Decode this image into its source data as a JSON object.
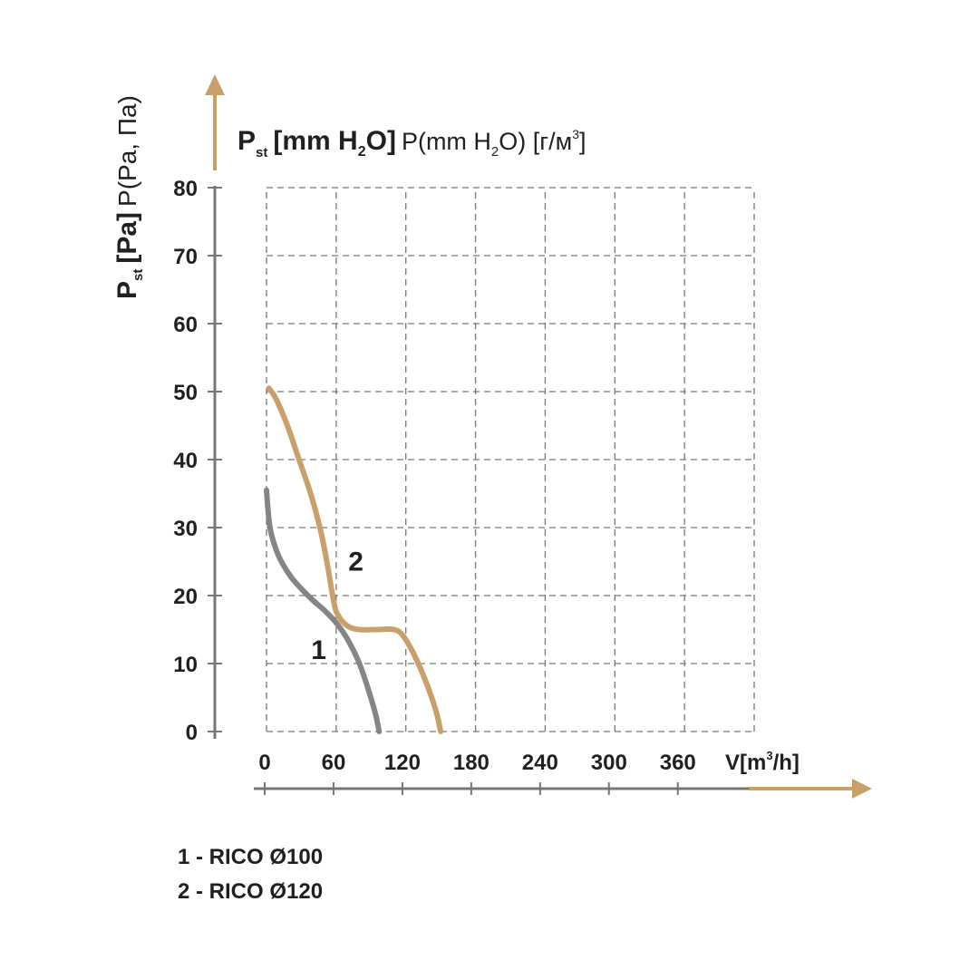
{
  "chart_data": {
    "type": "line",
    "y_label": {
      "main": "P",
      "sub": "st",
      "unit_bold": "[Pa]",
      "unit_extra": "P(Pa, Па)"
    },
    "secondary_label": {
      "main": "P",
      "sub": "st",
      "unit_bold_pre": "[mm H",
      "unit_bold_sub": "2",
      "unit_bold_post": "O]",
      "extra_pre": "P(mm H",
      "extra_sub": "2",
      "extra_mid": "O) [г/м",
      "extra_sup": "3",
      "extra_post": "]"
    },
    "x_label": {
      "pre": "V[m",
      "sup": "3",
      "post": "/h]"
    },
    "x_ticks": [
      "0",
      "60",
      "120",
      "180",
      "240",
      "300",
      "360"
    ],
    "y_ticks": [
      "0",
      "10",
      "20",
      "30",
      "40",
      "50",
      "60",
      "70",
      "80"
    ],
    "xlim": [
      0,
      420
    ],
    "ylim": [
      0,
      80
    ],
    "grid": true,
    "series": [
      {
        "name": "1",
        "color": "#858585",
        "x": [
          0,
          3,
          10,
          20,
          30,
          40,
          50,
          60,
          70,
          80,
          88,
          94,
          97
        ],
        "y": [
          35.5,
          30,
          26,
          23,
          21,
          19.3,
          17.8,
          16,
          13.5,
          10,
          6,
          2.5,
          0
        ]
      },
      {
        "name": "2",
        "color": "#c9a06a",
        "x": [
          2,
          8,
          18,
          28,
          38,
          46,
          52,
          58,
          62,
          70,
          80,
          95,
          110,
          118,
          128,
          138,
          146,
          150
        ],
        "y": [
          50.5,
          49,
          45,
          40,
          35,
          30,
          25,
          19,
          17,
          15.5,
          15,
          15,
          15,
          14,
          11,
          7,
          3,
          0
        ]
      }
    ],
    "series_labels": [
      {
        "text": "1",
        "x": 45,
        "y": 12
      },
      {
        "text": "2",
        "x": 77,
        "y": 25
      }
    ],
    "legend": [
      "1 - RICO Ø100",
      "2 - RICO Ø120"
    ],
    "axis_arrow_color": "#c9a06a",
    "axis_color": "#777777",
    "grid_color": "#777777"
  }
}
